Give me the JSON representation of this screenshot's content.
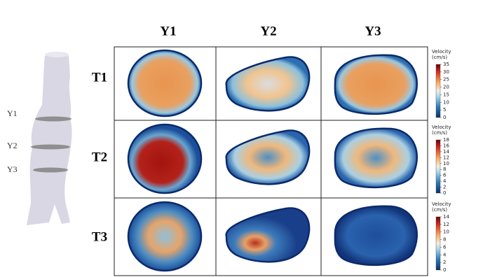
{
  "column_headers": [
    "Y1",
    "Y2",
    "Y3"
  ],
  "row_headers": [
    "T1",
    "T2",
    "T3"
  ],
  "vessel_labels": [
    "Y1",
    "Y2",
    "Y3"
  ],
  "colorbars": [
    {
      "title": [
        "Velocity",
        "(cm/s)"
      ],
      "ticks": [
        0,
        5,
        10,
        15,
        20,
        25,
        30,
        35
      ]
    },
    {
      "title": [
        "Velocity",
        "(cm/s)"
      ],
      "ticks": [
        0,
        2,
        4,
        6,
        8,
        10,
        12,
        14,
        16,
        18
      ]
    },
    {
      "title": [
        "Velocity",
        "(cm/s)"
      ],
      "ticks": [
        0,
        2,
        4,
        6,
        8,
        10,
        12,
        14
      ]
    }
  ]
}
